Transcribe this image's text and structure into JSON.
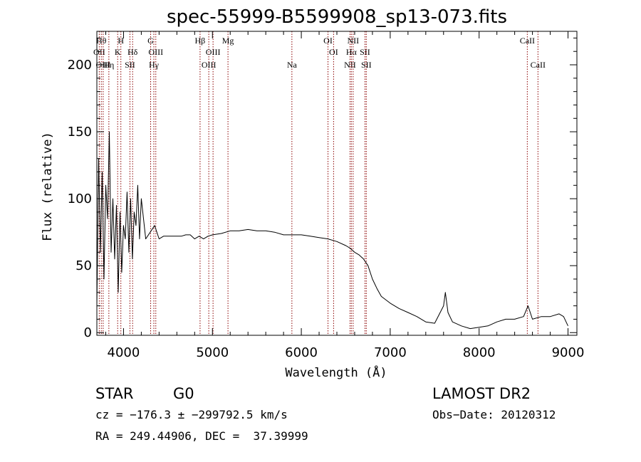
{
  "chart_data": {
    "type": "line",
    "title": "spec-55999-B5599908_sp13-073.fits",
    "xlabel": "Wavelength (Å)",
    "ylabel": "Flux (relative)",
    "xlim": [
      3700,
      9100
    ],
    "ylim": [
      -2,
      225
    ],
    "xticks": [
      4000,
      5000,
      6000,
      7000,
      8000,
      9000
    ],
    "yticks": [
      0,
      50,
      100,
      150,
      200
    ],
    "grid": false,
    "line_color": "#000000",
    "marker_color": "#8b0000",
    "series": [
      {
        "x": [
          3700,
          3720,
          3740,
          3760,
          3780,
          3800,
          3820,
          3840,
          3860,
          3880,
          3900,
          3920,
          3940,
          3960,
          3980,
          4000,
          4020,
          4040,
          4060,
          4080,
          4100,
          4120,
          4140,
          4160,
          4180,
          4200,
          4250,
          4300,
          4350,
          4400,
          4450,
          4500,
          4550,
          4600,
          4650,
          4700,
          4750,
          4800,
          4850,
          4900,
          4950,
          5000,
          5100,
          5200,
          5300,
          5400,
          5500,
          5600,
          5700,
          5800,
          5900,
          6000,
          6100,
          6200,
          6300,
          6400,
          6500,
          6550,
          6600,
          6650,
          6700,
          6750,
          6800,
          6850,
          6900,
          7000,
          7100,
          7200,
          7300,
          7400,
          7500,
          7600,
          7620,
          7650,
          7700,
          7800,
          7900,
          8000,
          8100,
          8200,
          8300,
          8400,
          8500,
          8550,
          8600,
          8700,
          8800,
          8900,
          8950,
          9000
        ],
        "y": [
          20,
          130,
          60,
          120,
          40,
          110,
          85,
          150,
          60,
          100,
          55,
          95,
          30,
          90,
          45,
          80,
          70,
          105,
          60,
          100,
          55,
          90,
          80,
          110,
          70,
          100,
          70,
          75,
          80,
          70,
          72,
          72,
          72,
          72,
          72,
          73,
          73,
          70,
          72,
          70,
          72,
          73,
          74,
          76,
          76,
          77,
          76,
          76,
          75,
          73,
          73,
          73,
          72,
          71,
          70,
          68,
          65,
          63,
          60,
          58,
          55,
          50,
          40,
          33,
          27,
          22,
          18,
          15,
          12,
          8,
          7,
          20,
          30,
          15,
          8,
          5,
          3,
          4,
          5,
          8,
          10,
          10,
          12,
          20,
          10,
          12,
          12,
          14,
          12,
          5
        ]
      }
    ],
    "lines": [
      {
        "wave": 3727,
        "label": "OII",
        "row": 2
      },
      {
        "wave": 3750,
        "label": "Hθ",
        "row": 1
      },
      {
        "wave": 3771,
        "label": "OIII",
        "row": 3
      },
      {
        "wave": 3835,
        "label": "Hη",
        "row": 3
      },
      {
        "wave": 3934,
        "label": "K",
        "row": 2
      },
      {
        "wave": 3970,
        "label": "H",
        "row": 1
      },
      {
        "wave": 4072,
        "label": "SII",
        "row": 3
      },
      {
        "wave": 4102,
        "label": "Hδ",
        "row": 2
      },
      {
        "wave": 4305,
        "label": "G",
        "row": 1
      },
      {
        "wave": 4341,
        "label": "Hγ",
        "row": 3
      },
      {
        "wave": 4363,
        "label": "OIII",
        "row": 2
      },
      {
        "wave": 4861,
        "label": "Hβ",
        "row": 1
      },
      {
        "wave": 4959,
        "label": "OIII",
        "row": 3
      },
      {
        "wave": 5007,
        "label": "OIII",
        "row": 2
      },
      {
        "wave": 5175,
        "label": "Mg",
        "row": 1
      },
      {
        "wave": 5894,
        "label": "Na",
        "row": 3
      },
      {
        "wave": 6300,
        "label": "OI",
        "row": 1
      },
      {
        "wave": 6363,
        "label": "OI",
        "row": 2
      },
      {
        "wave": 6548,
        "label": "NII",
        "row": 3
      },
      {
        "wave": 6563,
        "label": "Hα",
        "row": 2
      },
      {
        "wave": 6583,
        "label": "NII",
        "row": 1
      },
      {
        "wave": 6716,
        "label": "SII",
        "row": 2
      },
      {
        "wave": 6731,
        "label": "SII",
        "row": 3
      },
      {
        "wave": 8542,
        "label": "CaII",
        "row": 1
      },
      {
        "wave": 8662,
        "label": "CaII",
        "row": 3
      }
    ]
  },
  "info": {
    "class": "STAR",
    "subclass": "G0",
    "survey": "LAMOST DR2",
    "cz": "cz = −176.3 ± −299792.5 km/s",
    "obs_date": "Obs−Date: 20120312",
    "coords": "RA = 249.44906, DEC =  37.39999"
  }
}
